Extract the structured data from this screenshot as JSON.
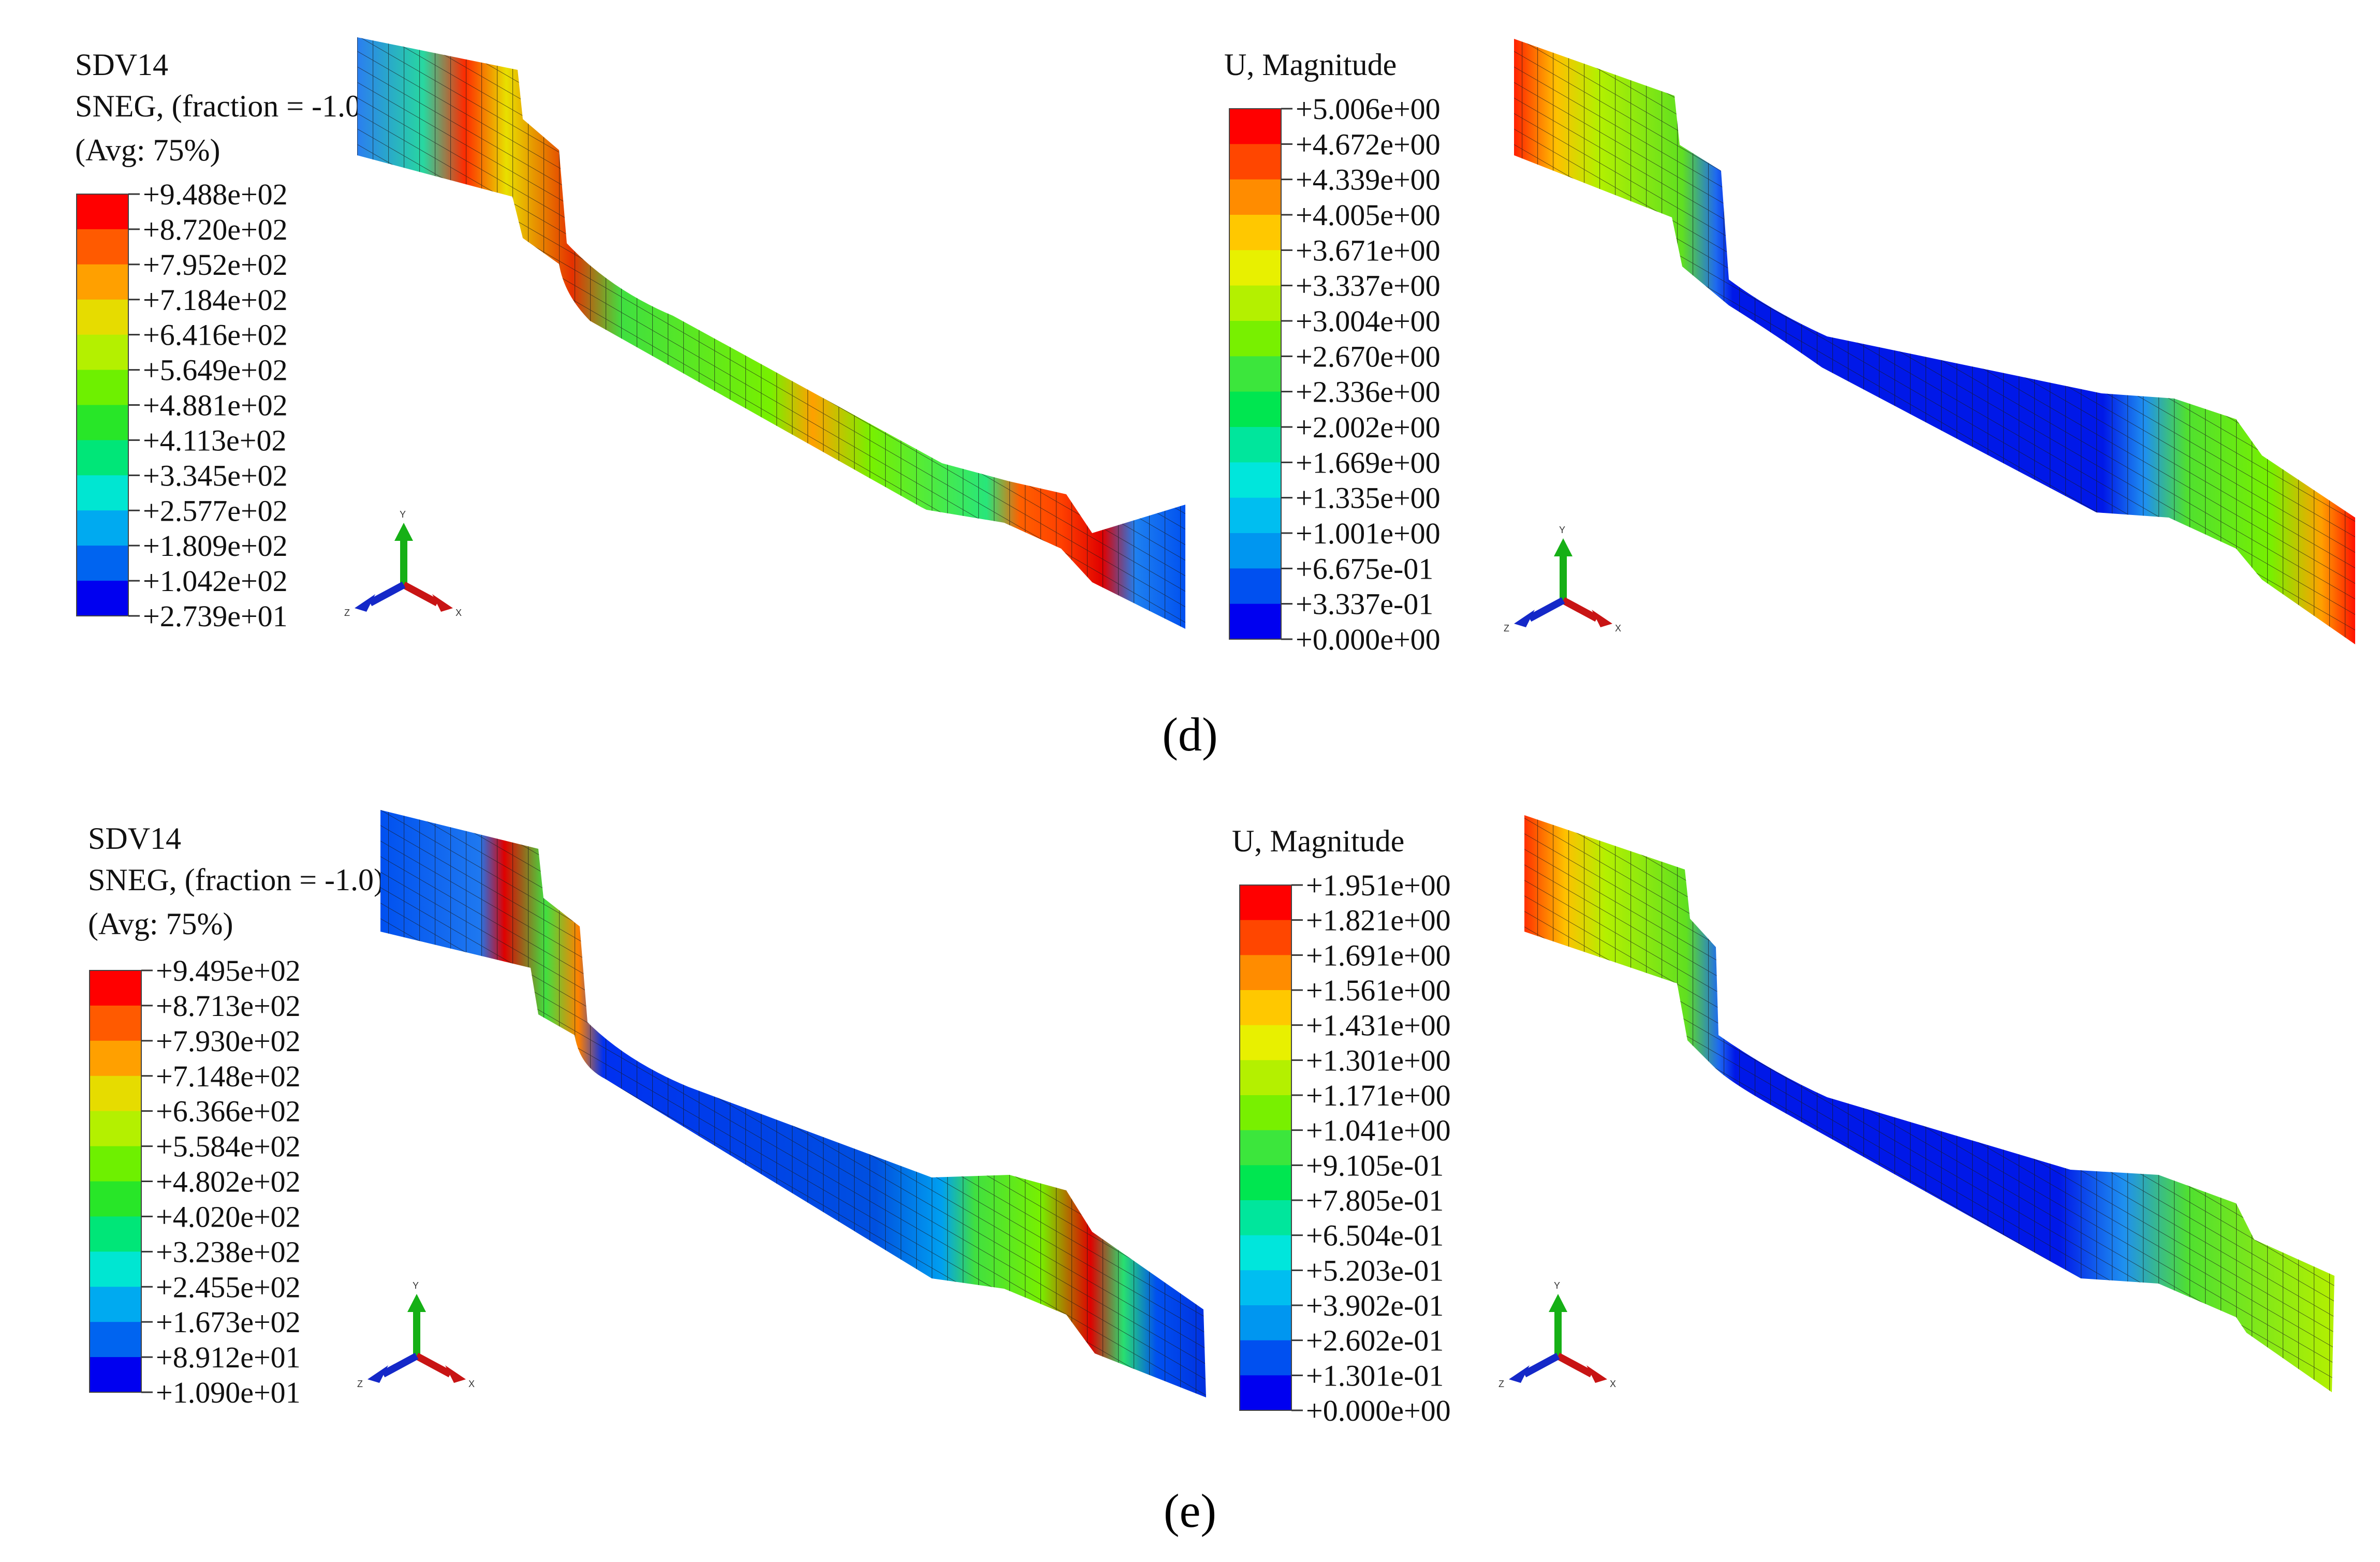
{
  "panels": [
    {
      "id": "d-left",
      "legend": {
        "title_lines": [
          "SDV14",
          "SNEG, (fraction = -1.0)",
          "(Avg: 75%)"
        ],
        "labels": [
          "+9.488e+02",
          "+8.720e+02",
          "+7.952e+02",
          "+7.184e+02",
          "+6.416e+02",
          "+5.649e+02",
          "+4.881e+02",
          "+4.113e+02",
          "+3.345e+02",
          "+2.577e+02",
          "+1.809e+02",
          "+1.042e+02",
          "+2.739e+01"
        ]
      },
      "plot": "stress_d"
    },
    {
      "id": "d-right",
      "legend": {
        "title_lines": [
          "U, Magnitude"
        ],
        "labels": [
          "+5.006e+00",
          "+4.672e+00",
          "+4.339e+00",
          "+4.005e+00",
          "+3.671e+00",
          "+3.337e+00",
          "+3.004e+00",
          "+2.670e+00",
          "+2.336e+00",
          "+2.002e+00",
          "+1.669e+00",
          "+1.335e+00",
          "+1.001e+00",
          "+6.675e-01",
          "+3.337e-01",
          "+0.000e+00"
        ]
      },
      "plot": "disp_d"
    },
    {
      "id": "e-left",
      "legend": {
        "title_lines": [
          "SDV14",
          "SNEG, (fraction = -1.0)",
          "(Avg: 75%)"
        ],
        "labels": [
          "+9.495e+02",
          "+8.713e+02",
          "+7.930e+02",
          "+7.148e+02",
          "+6.366e+02",
          "+5.584e+02",
          "+4.802e+02",
          "+4.020e+02",
          "+3.238e+02",
          "+2.455e+02",
          "+1.673e+02",
          "+8.912e+01",
          "+1.090e+01"
        ]
      },
      "plot": "stress_e"
    },
    {
      "id": "e-right",
      "legend": {
        "title_lines": [
          "U, Magnitude"
        ],
        "labels": [
          "+1.951e+00",
          "+1.821e+00",
          "+1.691e+00",
          "+1.561e+00",
          "+1.431e+00",
          "+1.301e+00",
          "+1.171e+00",
          "+1.041e+00",
          "+9.105e-01",
          "+7.805e-01",
          "+6.504e-01",
          "+5.203e-01",
          "+3.902e-01",
          "+2.602e-01",
          "+1.301e-01",
          "+0.000e+00"
        ]
      },
      "plot": "disp_e"
    }
  ],
  "captions": {
    "d": "(d)",
    "e": "(e)"
  },
  "triad_labels": {
    "y": "Y",
    "x": "X",
    "z": "Z"
  },
  "colormap_12": [
    "#ff0000",
    "#ff5a00",
    "#ffa000",
    "#e6dc00",
    "#b4f000",
    "#6ef000",
    "#28e628",
    "#00e678",
    "#00e6d2",
    "#00aaf0",
    "#0064f0",
    "#0000f0"
  ],
  "colormap_15": [
    "#ff0000",
    "#ff4600",
    "#ff8c00",
    "#ffc800",
    "#e8f000",
    "#b4f000",
    "#78f000",
    "#3ce63c",
    "#00e650",
    "#00e69c",
    "#00e6dc",
    "#00bef0",
    "#0096f0",
    "#0050f0",
    "#0000f0"
  ],
  "triad_colors": {
    "y": "#16b016",
    "x": "#c81414",
    "z": "#1428c8"
  }
}
